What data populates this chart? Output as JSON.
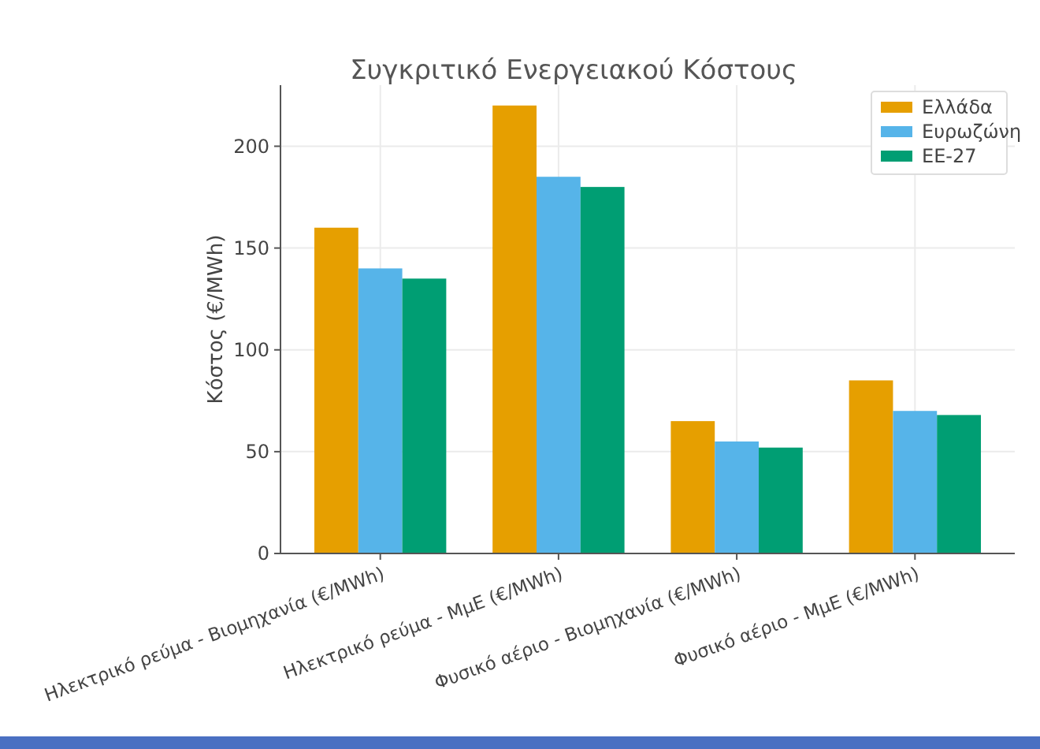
{
  "chart_data": {
    "type": "bar",
    "title": "Συγκριτικό Ενεργειακού Κόστους",
    "ylabel": "Κόστος (€/MWh)",
    "categories": [
      "Ηλεκτρικό ρεύμα - Βιομηχανία (€/MWh)",
      "Ηλεκτρικό ρεύμα - ΜμΕ (€/MWh)",
      "Φυσικό αέριο - Βιομηχανία (€/MWh)",
      "Φυσικό αέριο - ΜμΕ (€/MWh)"
    ],
    "series": [
      {
        "name": "Ελλάδα",
        "color": "#e69f00",
        "values": [
          160,
          220,
          65,
          85
        ]
      },
      {
        "name": "Ευρωζώνη",
        "color": "#56b4e9",
        "values": [
          140,
          185,
          55,
          70
        ]
      },
      {
        "name": "ΕΕ-27",
        "color": "#009e73",
        "values": [
          135,
          180,
          52,
          68
        ]
      }
    ],
    "ylim": [
      0,
      230
    ],
    "yticks": [
      0,
      50,
      100,
      150,
      200
    ],
    "grid": true,
    "legend": "top right"
  }
}
